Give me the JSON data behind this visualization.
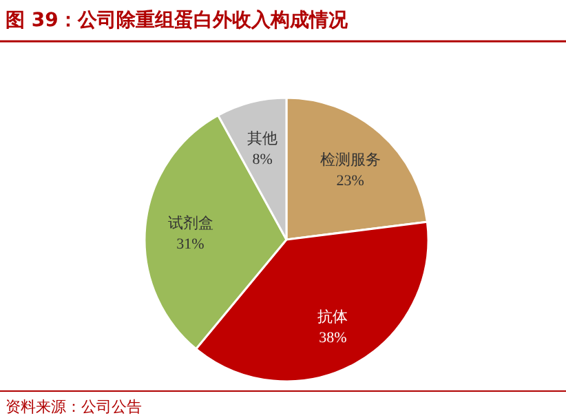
{
  "chart_data": {
    "type": "pie",
    "title": "图 39：公司除重组蛋白外收入构成情况",
    "categories": [
      "检测服务",
      "抗体",
      "试剂盒",
      "其他"
    ],
    "values": [
      23,
      38,
      31,
      8
    ],
    "colors": [
      "#c9a064",
      "#c00000",
      "#9bbb59",
      "#c8c8c8"
    ],
    "value_labels": [
      "23%",
      "38%",
      "31%",
      "8%"
    ],
    "annotations": [
      "资料来源：公司公告"
    ]
  }
}
